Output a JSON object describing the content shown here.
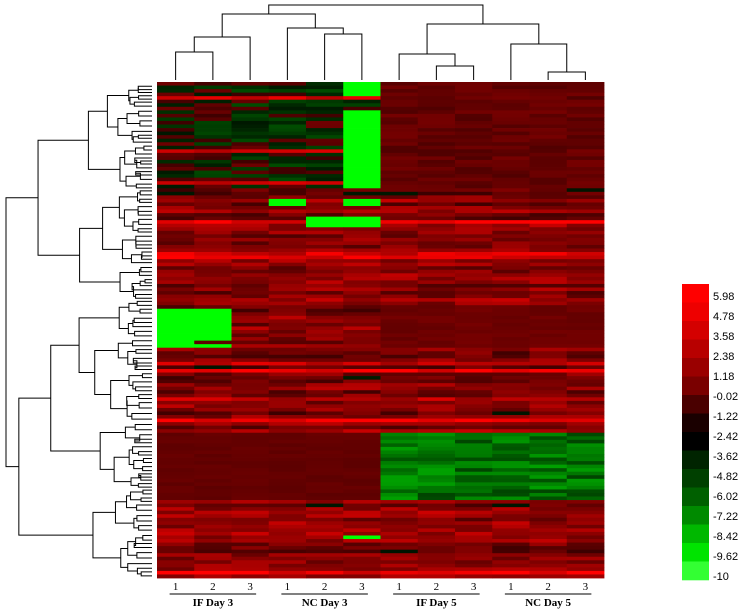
{
  "chart_data": {
    "type": "heatmap",
    "columns": [
      "1",
      "2",
      "3",
      "1",
      "2",
      "3",
      "1",
      "2",
      "3",
      "1",
      "2",
      "3"
    ],
    "groups": [
      {
        "label": "IF Day 3",
        "columns": [
          0,
          1,
          2
        ]
      },
      {
        "label": "NC Day 3",
        "columns": [
          3,
          4,
          5
        ]
      },
      {
        "label": "IF Day 5",
        "columns": [
          6,
          7,
          8
        ]
      },
      {
        "label": "NC Day 5",
        "columns": [
          9,
          10,
          11
        ]
      }
    ],
    "legend": {
      "placement": "right",
      "ticks": [
        "5.98",
        "4.78",
        "3.58",
        "2.38",
        "1.18",
        "-0.02",
        "-1.22",
        "-2.42",
        "-3.62",
        "-4.82",
        "-6.02",
        "-7.22",
        "-8.42",
        "-9.62",
        "-10"
      ],
      "colors": [
        "#ff0000",
        "#ee0000",
        "#d40000",
        "#b80000",
        "#9a0000",
        "#7a0000",
        "#4a0000",
        "#1a0000",
        "#000000",
        "#002400",
        "#004000",
        "#006000",
        "#008a00",
        "#00b800",
        "#00e400",
        "#33ff33"
      ]
    },
    "colors": {
      "high": "#ff0000",
      "mid": "#000000",
      "low": "#00ff00"
    },
    "dendrograms": {
      "top": true,
      "left": true
    },
    "row_count": 140
  }
}
